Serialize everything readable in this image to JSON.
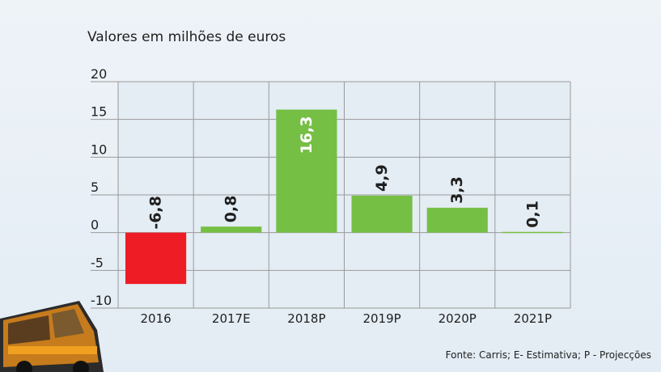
{
  "subtitle": "Valores em milhões de euros",
  "source": "Fonte: Carris; E- Estimativa; P - Projecções",
  "colors": {
    "positive": "#76bf45",
    "negative": "#ee1c25",
    "grid": "#9a9a9a"
  },
  "chart_data": {
    "type": "bar",
    "categories": [
      "2016",
      "2017E",
      "2018P",
      "2019P",
      "2020P",
      "2021P"
    ],
    "values": [
      -6.8,
      0.8,
      16.3,
      4.9,
      3.3,
      0.1
    ],
    "value_labels": [
      "-6,8",
      "0,8",
      "16,3",
      "4,9",
      "3,3",
      "0,1"
    ],
    "y_ticks": [
      20,
      15,
      10,
      5,
      0,
      -5,
      -10
    ],
    "y_tick_labels": [
      "20",
      "15",
      "10",
      "5",
      "0",
      "-5",
      "-10"
    ],
    "ylim": [
      -10,
      20
    ],
    "grid": true,
    "title": "",
    "xlabel": "",
    "ylabel": ""
  }
}
